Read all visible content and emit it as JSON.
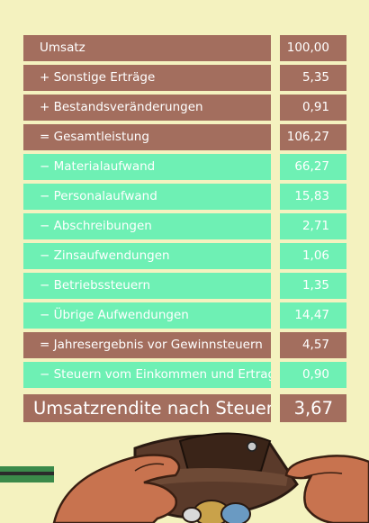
{
  "rows": [
    {
      "label": "Umsatz",
      "value": "100,00",
      "style": "brown"
    },
    {
      "label": "+ Sonstige Erträge",
      "value": "5,35",
      "style": "brown"
    },
    {
      "label": "+ Bestandsveränderungen",
      "value": "0,91",
      "style": "brown"
    },
    {
      "label": "= Gesamtleistung",
      "value": "106,27",
      "style": "brown"
    },
    {
      "label": "− Materialaufwand",
      "value": "66,27",
      "style": "green"
    },
    {
      "label": "− Personalaufwand",
      "value": "15,83",
      "style": "green"
    },
    {
      "label": "− Abschreibungen",
      "value": "2,71",
      "style": "green"
    },
    {
      "label": "− Zinsaufwendungen",
      "value": "1,06",
      "style": "green"
    },
    {
      "label": "−  Betriebssteuern",
      "value": "1,35",
      "style": "green"
    },
    {
      "label": "− Übrige Aufwendungen",
      "value": "14,47",
      "style": "green"
    },
    {
      "label": "= Jahresergebnis vor Gewinnsteuern",
      "value": "4,57",
      "style": "brown"
    },
    {
      "label": "− Steuern vom Einkommen und Ertrag",
      "value": "0,90",
      "style": "green"
    }
  ],
  "result": {
    "label": "Umsatzrendite nach Steuern",
    "value": "3,67"
  },
  "colors": {
    "background": "#f4f2bf",
    "brown": "#a36e5e",
    "green": "#6ef0b4",
    "text": "#ffffff"
  },
  "illustration": {
    "icons": [
      "wallet-icon",
      "hand-icon",
      "coin-icon"
    ]
  }
}
